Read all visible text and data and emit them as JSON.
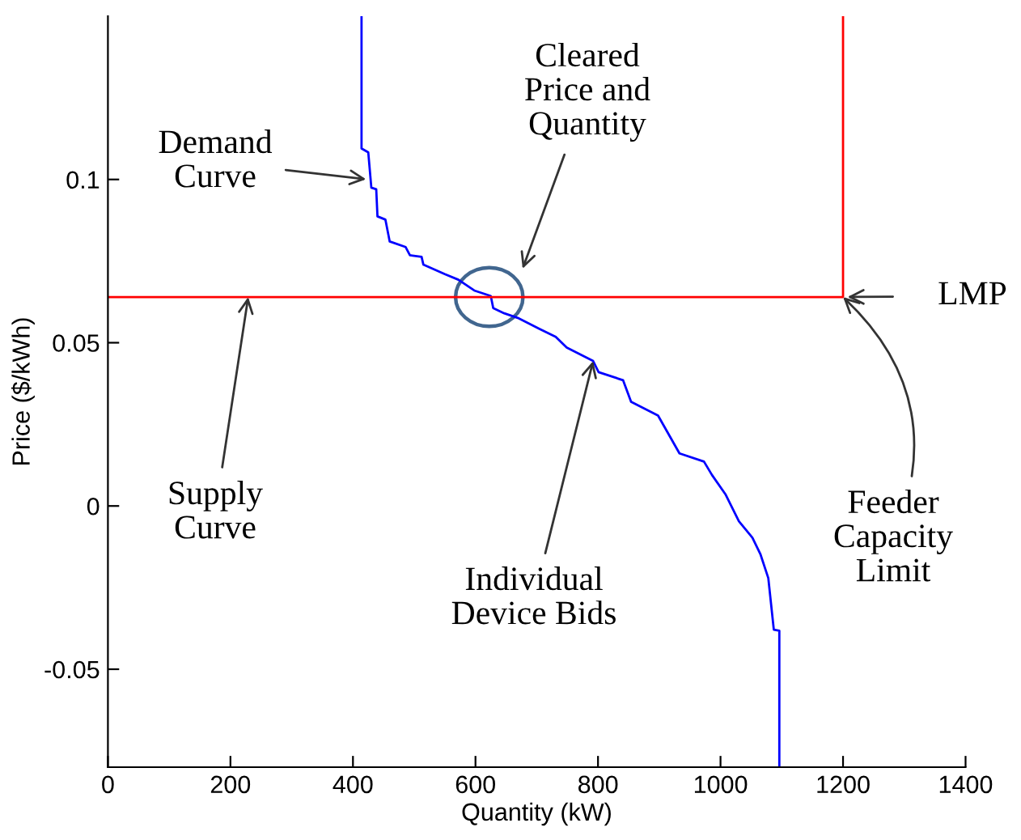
{
  "chart_data": {
    "type": "line",
    "xlabel": "Quantity (kW)",
    "ylabel": "Price ($/kWh)",
    "xlim": [
      0,
      1400
    ],
    "xticks": [
      0,
      200,
      400,
      600,
      800,
      1000,
      1200,
      1400
    ],
    "ylim": [
      -0.08,
      0.15
    ],
    "yticks": [
      -0.05,
      0,
      0.05,
      0.1
    ],
    "grid": false,
    "legend": false,
    "marker": "none",
    "line_style": "solid",
    "series": [
      {
        "color": "#0000ff",
        "x": [
          414,
          414,
          425,
          425,
          430,
          438,
          440,
          453,
          460,
          486,
          493,
          512,
          515,
          550,
          572,
          598,
          625,
          629,
          647,
          669,
          704,
          731,
          749,
          792,
          801,
          841,
          854,
          898,
          933,
          973,
          986,
          1008,
          1030,
          1052,
          1065,
          1078,
          1087,
          1096,
          1096
        ],
        "values": [
          0.15,
          0.1095,
          0.1083,
          0.1083,
          0.0975,
          0.097,
          0.0887,
          0.0877,
          0.081,
          0.0793,
          0.0768,
          0.0763,
          0.0739,
          0.071,
          0.0693,
          0.066,
          0.0643,
          0.0606,
          0.059,
          0.0576,
          0.0543,
          0.0518,
          0.0485,
          0.0444,
          0.041,
          0.0385,
          0.0319,
          0.0277,
          0.0161,
          0.0136,
          0.0095,
          0.0036,
          -0.0047,
          -0.0097,
          -0.0147,
          -0.0221,
          -0.0379,
          -0.0382,
          -0.08
        ]
      },
      {
        "color": "#ff0000",
        "x": [
          0,
          1200,
          1200
        ],
        "values": [
          0.064,
          0.064,
          0.15
        ]
      }
    ],
    "annotations": [
      {
        "text": "Demand\nCurve",
        "x": 425,
        "y": 0.1
      },
      "Cleared\nPrice and\nQuantity",
      {
        "text": "LMP",
        "x": 1200,
        "y": 0.064
      },
      {
        "text": "Supply\nCurve",
        "x": 229,
        "y": 0.064
      },
      {
        "text": "Individual\nDevice Bids",
        "x": 792,
        "y": 0.0444
      },
      {
        "text": "Feeder\nCapacity\nLimit",
        "x": 1200,
        "y": 0.064
      }
    ]
  }
}
